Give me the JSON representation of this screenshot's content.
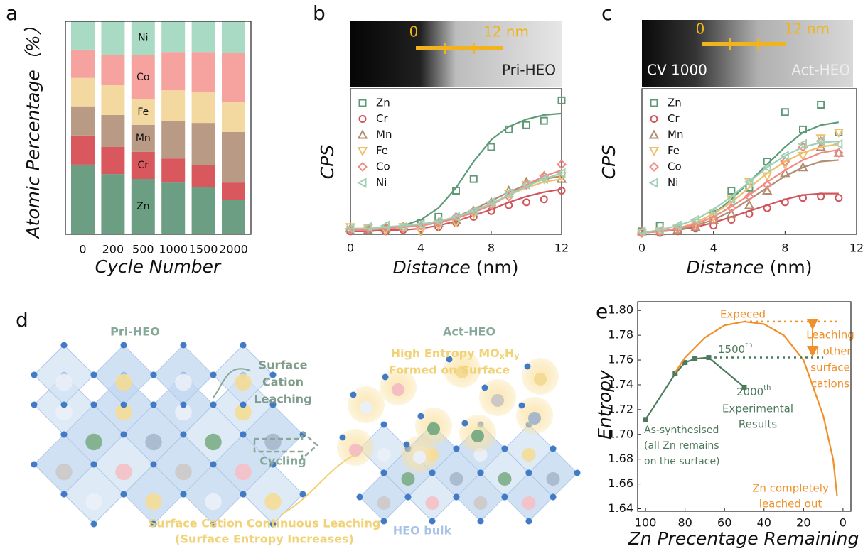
{
  "panel_labels": [
    "a",
    "b",
    "c",
    "d",
    "e"
  ],
  "chart_data": [
    {
      "type": "stacked_bar",
      "y_label": "Atomic Percentage（%）",
      "x_label": "Cycle Number",
      "categories": [
        "0",
        "200",
        "500",
        "1000",
        "1500",
        "2000"
      ],
      "ylim": [
        0,
        100
      ],
      "series": [
        {
          "name": "Zn",
          "color": "#6b9e82",
          "values": [
            32.7,
            28.3,
            26,
            24.3,
            22.3,
            16.3
          ]
        },
        {
          "name": "Cr",
          "color": "#d9585e",
          "values": [
            13.7,
            12.7,
            12.7,
            11.3,
            10.3,
            8
          ]
        },
        {
          "name": "Mn",
          "color": "#b89a85",
          "values": [
            13.7,
            15,
            12.7,
            17.7,
            19.7,
            23.7
          ]
        },
        {
          "name": "Fe",
          "color": "#f3d8a0",
          "values": [
            13.3,
            14,
            12,
            14.3,
            14.3,
            14
          ]
        },
        {
          "name": "Co",
          "color": "#f6a3a0",
          "values": [
            13.3,
            14.3,
            20.7,
            18,
            19,
            23.3
          ]
        },
        {
          "name": "Ni",
          "color": "#a9dbc4",
          "values": [
            13.3,
            15.7,
            16,
            14.3,
            14.3,
            14.7
          ]
        }
      ]
    },
    {
      "type": "scatter_fit",
      "y_label": "CPS",
      "x_label": "Distance",
      "x_unit": "(nm)",
      "image": {
        "scale_start": "0",
        "scale_end": "12 nm",
        "label": "Pri-HEO"
      },
      "xlim": [
        0,
        12
      ],
      "xticks": [
        0,
        4,
        8,
        12
      ],
      "ylim": [
        0,
        100
      ],
      "x": [
        0,
        1,
        2,
        3,
        4,
        5,
        6,
        7,
        8,
        9,
        10,
        11,
        12
      ],
      "series": [
        {
          "name": "Zn",
          "color": "#5f9a78",
          "marker": "square",
          "values": [
            3,
            4,
            4,
            5,
            8,
            12,
            30,
            38,
            60,
            72,
            75,
            78,
            92
          ],
          "fit": [
            3,
            3,
            4,
            6,
            10,
            18,
            32,
            50,
            65,
            74,
            79,
            82,
            83
          ]
        },
        {
          "name": "Cr",
          "color": "#d0545a",
          "marker": "circle",
          "values": [
            2,
            3,
            2,
            3,
            4,
            5,
            8,
            12,
            16,
            20,
            22,
            24,
            30
          ],
          "fit": [
            2,
            2,
            3,
            3,
            4,
            6,
            9,
            13,
            17,
            22,
            26,
            29,
            31
          ]
        },
        {
          "name": "Mn",
          "color": "#b08c70",
          "marker": "triangle-up",
          "values": [
            4,
            3,
            4,
            5,
            6,
            8,
            10,
            16,
            22,
            30,
            36,
            40,
            38
          ],
          "fit": [
            3,
            3,
            4,
            5,
            6,
            8,
            12,
            17,
            23,
            29,
            34,
            38,
            40
          ]
        },
        {
          "name": "Fe",
          "color": "#efc06c",
          "marker": "triangle-down",
          "values": [
            5,
            4,
            3,
            5,
            2,
            6,
            8,
            14,
            20,
            28,
            34,
            38,
            40
          ],
          "fit": [
            4,
            4,
            4,
            5,
            6,
            8,
            11,
            15,
            21,
            27,
            32,
            36,
            38
          ]
        },
        {
          "name": "Co",
          "color": "#f08a86",
          "marker": "diamond",
          "values": [
            3,
            4,
            5,
            4,
            6,
            8,
            12,
            16,
            20,
            26,
            34,
            40,
            48
          ],
          "fit": [
            3,
            3,
            4,
            5,
            6,
            8,
            11,
            15,
            20,
            27,
            34,
            40,
            44
          ]
        },
        {
          "name": "Ni",
          "color": "#9fd0b6",
          "marker": "triangle-left",
          "values": [
            4,
            5,
            6,
            5,
            7,
            9,
            12,
            16,
            22,
            28,
            34,
            38,
            42
          ],
          "fit": [
            4,
            4,
            5,
            6,
            7,
            9,
            12,
            16,
            21,
            27,
            33,
            38,
            42
          ]
        }
      ]
    },
    {
      "type": "scatter_fit",
      "y_label": "CPS",
      "x_label": "Distance",
      "x_unit": "(nm)",
      "image": {
        "scale_start": "0",
        "scale_end": "12 nm",
        "note": "CV 1000",
        "label": "Act-HEO"
      },
      "xlim": [
        0,
        12
      ],
      "xticks": [
        0,
        4,
        8,
        12
      ],
      "ylim": [
        0,
        100
      ],
      "x": [
        0,
        1,
        2,
        3,
        4,
        5,
        6,
        7,
        8,
        9,
        10,
        11
      ],
      "series": [
        {
          "name": "Zn",
          "color": "#5f9a78",
          "marker": "square",
          "values": [
            2,
            6,
            3,
            8,
            14,
            30,
            32,
            50,
            84,
            72,
            89,
            70
          ],
          "fit": [
            1,
            2,
            4,
            8,
            14,
            24,
            36,
            48,
            60,
            70,
            75,
            77
          ]
        },
        {
          "name": "Cr",
          "color": "#d0545a",
          "marker": "circle",
          "values": [
            1,
            1,
            2,
            4,
            6,
            10,
            14,
            18,
            22,
            25,
            26,
            25
          ],
          "fit": [
            1,
            2,
            3,
            5,
            8,
            12,
            16,
            20,
            24,
            27,
            28,
            28
          ]
        },
        {
          "name": "Mn",
          "color": "#b08c70",
          "marker": "triangle-up",
          "values": [
            2,
            2,
            3,
            5,
            10,
            14,
            20,
            30,
            42,
            46,
            60,
            56
          ],
          "fit": [
            1,
            2,
            3,
            6,
            10,
            16,
            24,
            32,
            40,
            46,
            50,
            51
          ]
        },
        {
          "name": "Fe",
          "color": "#efc06c",
          "marker": "triangle-down",
          "values": [
            1,
            2,
            4,
            8,
            12,
            24,
            36,
            40,
            48,
            54,
            66,
            70
          ],
          "fit": [
            1,
            2,
            4,
            8,
            14,
            22,
            32,
            42,
            50,
            56,
            60,
            62
          ]
        },
        {
          "name": "Co",
          "color": "#f08a86",
          "marker": "diamond",
          "values": [
            1,
            2,
            4,
            6,
            10,
            18,
            26,
            34,
            50,
            60,
            64,
            56
          ],
          "fit": [
            1,
            2,
            4,
            7,
            12,
            19,
            27,
            36,
            44,
            51,
            56,
            58
          ]
        },
        {
          "name": "Ni",
          "color": "#9fd0b6",
          "marker": "triangle-left",
          "values": [
            2,
            3,
            6,
            10,
            16,
            24,
            36,
            46,
            54,
            62,
            64,
            62
          ],
          "fit": [
            1,
            3,
            6,
            10,
            17,
            26,
            36,
            46,
            54,
            60,
            63,
            64
          ]
        }
      ]
    },
    {
      "type": "line",
      "y_label": "Entropy",
      "x_label": "Zn Precentage Remaining",
      "xlim": [
        104,
        -4
      ],
      "xticks": [
        100,
        80,
        60,
        40,
        20,
        0
      ],
      "ylim": [
        1.638,
        1.807
      ],
      "yticks": [
        1.64,
        1.66,
        1.68,
        {
          "value": 1.7,
          "label": "1.70"
        },
        1.72,
        1.74,
        1.76,
        1.78,
        {
          "value": 1.8,
          "label": "1.80"
        }
      ],
      "series": [
        {
          "name": [
            "Experimental",
            "Results"
          ],
          "color": "#4d7a5e",
          "marker": "square",
          "x": [
            100,
            85,
            80,
            75,
            68,
            50
          ],
          "values": [
            1.712,
            1.749,
            1.758,
            1.761,
            1.762,
            1.738
          ]
        },
        {
          "name": "Expeced",
          "color": "#f0902a",
          "x": [
            85,
            80,
            70,
            60,
            50,
            40,
            30,
            20,
            10,
            5,
            3
          ],
          "values": [
            1.75,
            1.762,
            1.778,
            1.788,
            1.791,
            1.789,
            1.78,
            1.76,
            1.715,
            1.68,
            1.65
          ]
        },
        {
          "color": "#f0902a",
          "dash": true,
          "x": [
            50,
            3
          ],
          "values": [
            1.791,
            1.791
          ]
        },
        {
          "color": "#4d7a5e",
          "dash": true,
          "x": [
            68,
            10
          ],
          "values": [
            1.762,
            1.762
          ]
        }
      ],
      "annotations": [
        {
          "text": "1500",
          "sup": "th"
        },
        {
          "text": "2000",
          "sup": "th"
        },
        [
          "As-synthesised",
          "(all Zn remains",
          "on the surface)"
        ],
        [
          "Leaching",
          "of other",
          "surface",
          "cations"
        ],
        [
          "Zn completely",
          "leached out"
        ]
      ]
    }
  ],
  "diagram": {
    "left_label": "Pri-HEO",
    "right_label": "Act-HEO",
    "leaching": [
      "Surface",
      "Cation",
      "Leaching"
    ],
    "formed": [
      "High Entropy MO",
      "x",
      "H",
      "y",
      "Formed on Surface"
    ],
    "cycling": "Cycling",
    "continuous": [
      "Surface Cation Continuous Leaching",
      "(Surface Entropy Increases)"
    ],
    "bulk": "HEO bulk"
  }
}
